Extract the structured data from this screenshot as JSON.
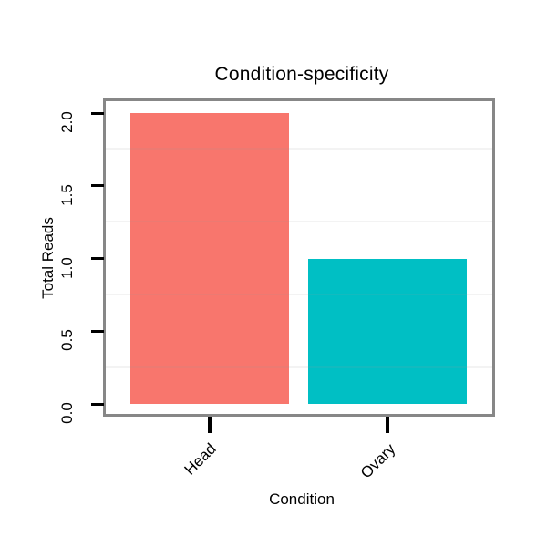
{
  "chart_data": {
    "type": "bar",
    "title": "Condition-specificity",
    "xlabel": "Condition",
    "ylabel": "Total Reads",
    "categories": [
      "Head",
      "Ovary"
    ],
    "values": [
      2.0,
      1.0
    ],
    "bar_colors": [
      "#F8766D",
      "#00BFC4"
    ],
    "ylim": [
      0,
      2
    ],
    "y_ticks": [
      0.0,
      0.5,
      1.0,
      1.5,
      2.0
    ],
    "y_tick_labels": [
      "0.0",
      "0.5",
      "1.0",
      "1.5",
      "2.0"
    ],
    "minor_gridlines": [
      0.25,
      0.75,
      1.25,
      1.75
    ],
    "x_tick_label_rotation_deg": 45,
    "grid": "minor-only",
    "legend": "none",
    "panel_border_color": "#878787",
    "tick_color": "#000000",
    "background": "#FFFFFF"
  }
}
